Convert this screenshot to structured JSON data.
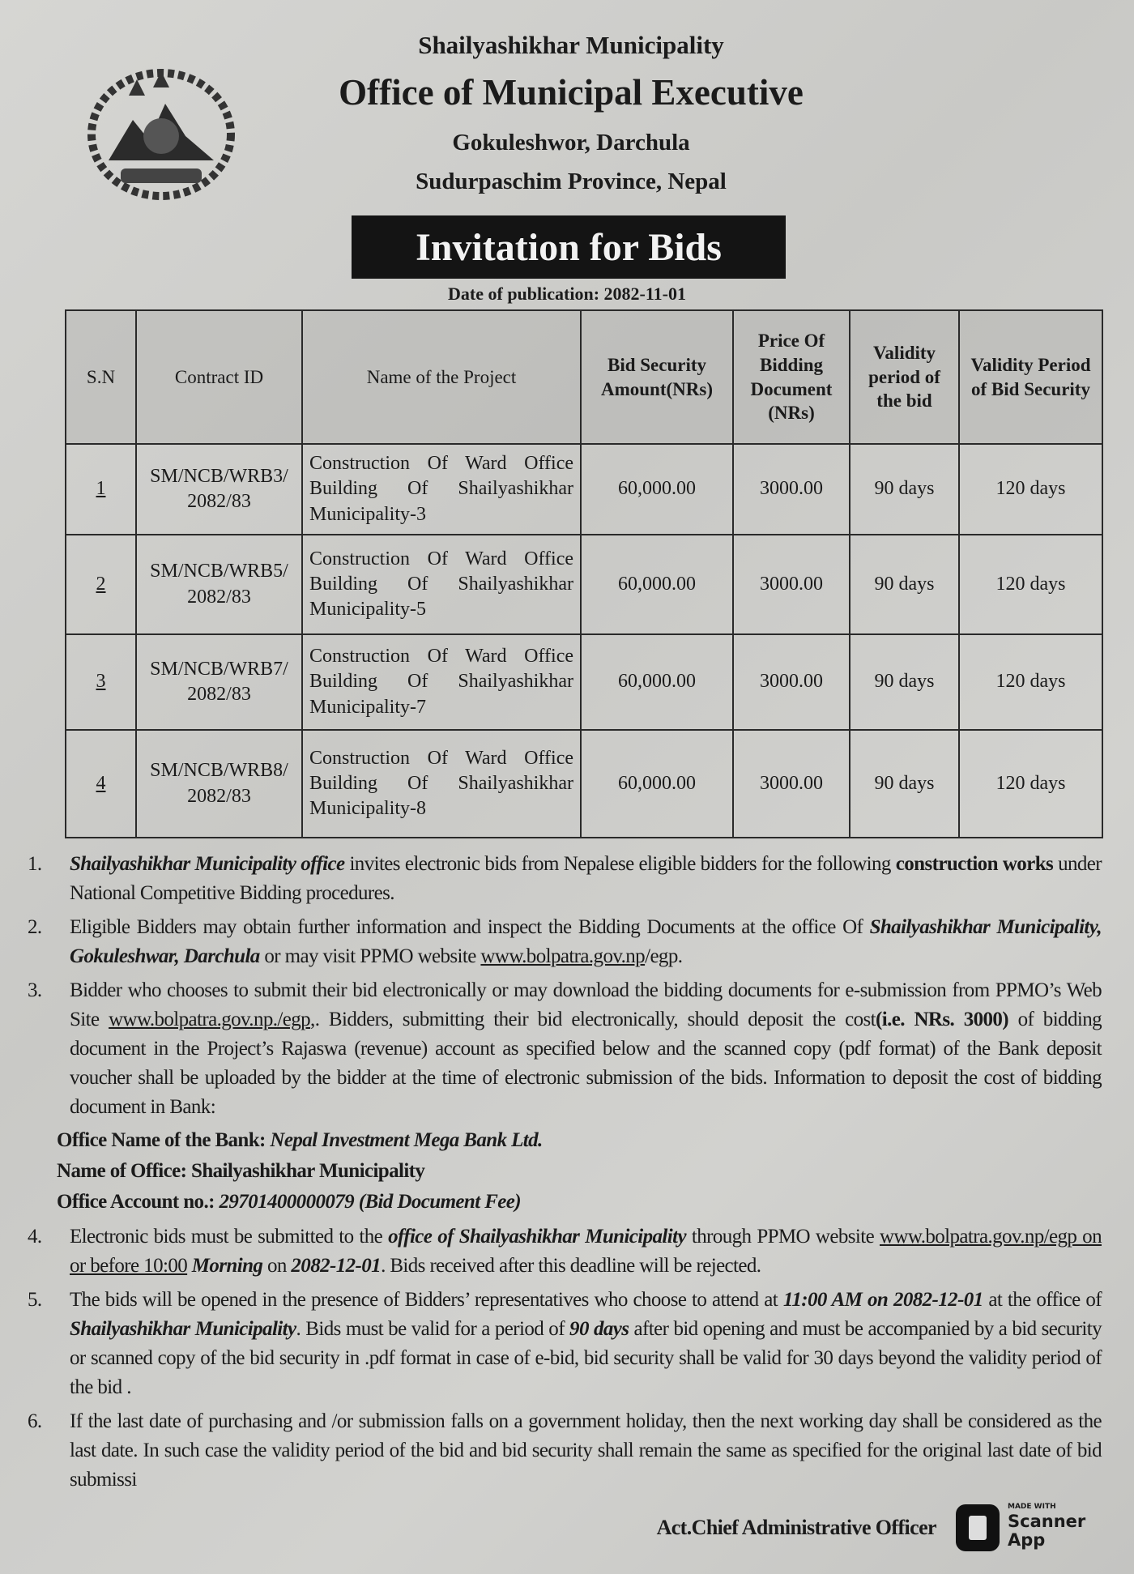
{
  "header": {
    "municipality": "Shailyashikhar Municipality",
    "office": "Office of Municipal Executive",
    "location": "Gokuleshwor, Darchula",
    "province": "Sudurpaschim Province, Nepal",
    "banner": "Invitation for Bids",
    "publication_date": "Date of publication: 2082-11-01",
    "emblem": "nepal-government-emblem"
  },
  "table": {
    "headers": [
      "S.N",
      "Contract ID",
      "Name of  the Project",
      "Bid Security Amount(NRs)",
      "Price Of Bidding Document (NRs)",
      "Validity period of the bid",
      "Validity Period of Bid Security"
    ],
    "rows": [
      {
        "sn": "1",
        "contract_id": "SM/NCB/WRB3/ 2082/83",
        "project": "Construction Of Ward Office Building Of Shailyashikhar Municipality-3",
        "bid_security": "60,000.00",
        "doc_price": "3000.00",
        "bid_validity": "90 days",
        "security_validity": "120 days"
      },
      {
        "sn": "2",
        "contract_id": "SM/NCB/WRB5/ 2082/83",
        "project": "Construction Of Ward Office Building Of Shailyashikhar Municipality-5",
        "bid_security": "60,000.00",
        "doc_price": "3000.00",
        "bid_validity": "90 days",
        "security_validity": "120 days"
      },
      {
        "sn": "3",
        "contract_id": "SM/NCB/WRB7/ 2082/83",
        "project": "Construction Of Ward Office Building Of Shailyashikhar Municipality-7",
        "bid_security": "60,000.00",
        "doc_price": "3000.00",
        "bid_validity": "90 days",
        "security_validity": "120 days"
      },
      {
        "sn": "4",
        "contract_id": "SM/NCB/WRB8/ 2082/83",
        "project": "Construction Of Ward Office Building Of Shailyashikhar Municipality-8",
        "bid_security": "60,000.00",
        "doc_price": "3000.00",
        "bid_validity": "90 days",
        "security_validity": "120 days"
      }
    ]
  },
  "items": [
    {
      "num": "1.",
      "segments": [
        {
          "t": "Shailyashikhar Municipality office",
          "s": "bi"
        },
        {
          "t": " invites electronic bids from Nepalese eligible bidders for the following ",
          "s": ""
        },
        {
          "t": "construction works",
          "s": "b"
        },
        {
          "t": " under National Competitive Bidding procedures.",
          "s": ""
        }
      ]
    },
    {
      "num": "2.",
      "segments": [
        {
          "t": "Eligible Bidders may obtain further information and inspect the Bidding Documents at the office Of ",
          "s": ""
        },
        {
          "t": "Shailyashikhar Municipality, Gokuleshwar, Darchula",
          "s": "bi"
        },
        {
          "t": " or may visit PPMO website ",
          "s": ""
        },
        {
          "t": "www.bolpatra.gov.np",
          "s": "u"
        },
        {
          "t": "/egp.",
          "s": ""
        }
      ]
    },
    {
      "num": "3.",
      "segments": [
        {
          "t": "Bidder who chooses to submit their bid electronically or may download the bidding documents for e-submission from PPMO’s Web Site ",
          "s": ""
        },
        {
          "t": "www.bolpatra.gov.np./egp",
          "s": "u"
        },
        {
          "t": ",. Bidders, submitting their bid electronically, should deposit the cost",
          "s": ""
        },
        {
          "t": "(i.e. NRs. 3000)",
          "s": "b"
        },
        {
          "t": " of bidding document in the Project’s Rajaswa (revenue) account as specified below and the scanned copy (pdf format) of the Bank deposit voucher shall be uploaded by the bidder at the time of electronic submission of the bids. Information to deposit the cost of bidding document in Bank:",
          "s": ""
        }
      ]
    }
  ],
  "bank": {
    "bank_label": "Office Name of the Bank: ",
    "bank_value": "Nepal Investment Mega Bank Ltd.",
    "office_label": "Name of Office: ",
    "office_value": "Shailyashikhar Municipality",
    "account_label": "Office Account no.: ",
    "account_value": "29701400000079 (Bid Document Fee)"
  },
  "items_after": [
    {
      "num": "4.",
      "segments": [
        {
          "t": "Electronic bids must be submitted to the ",
          "s": ""
        },
        {
          "t": "office of Shailyashikhar Municipality",
          "s": "bi"
        },
        {
          "t": " through PPMO website ",
          "s": ""
        },
        {
          "t": "www.bolpatra.gov.np/egp on or before 10:00",
          "s": "u"
        },
        {
          "t": " Morning",
          "s": "bi"
        },
        {
          "t": " on ",
          "s": ""
        },
        {
          "t": "2082-12-01",
          "s": "bi"
        },
        {
          "t": ". Bids received after this deadline will be rejected.",
          "s": ""
        }
      ]
    },
    {
      "num": "5.",
      "segments": [
        {
          "t": "The bids will be opened in the presence of Bidders’ representatives who choose to attend at ",
          "s": ""
        },
        {
          "t": "11:00 AM on 2082-12-01",
          "s": "bi"
        },
        {
          "t": " at the office of ",
          "s": ""
        },
        {
          "t": "Shailyashikhar Municipality",
          "s": "bi"
        },
        {
          "t": ". Bids must be valid for a period of ",
          "s": ""
        },
        {
          "t": "90 days",
          "s": "bi"
        },
        {
          "t": " after bid opening and must be accompanied by a bid security or scanned copy of the bid security in .pdf format in case of e-bid, bid security shall be valid for 30 days beyond the validity period of the bid .",
          "s": ""
        }
      ]
    },
    {
      "num": "6.",
      "segments": [
        {
          "t": "If the last date of purchasing and /or submission falls on a government holiday, then the next working day shall be considered as the last date. In such case the validity period of the bid and bid security shall remain the same as specified for the original last date of bid submissi",
          "s": ""
        }
      ]
    }
  ],
  "signature": "Act.Chief Administrative Officer",
  "watermark": {
    "made_with": "MADE WITH",
    "name_line1": "Scanner",
    "name_line2": "App",
    "icon": "scanner-app-icon"
  }
}
